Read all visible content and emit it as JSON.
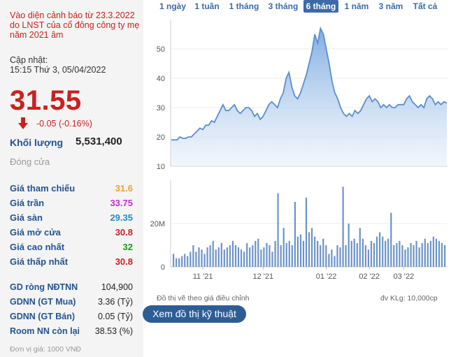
{
  "header": {
    "warning": "Vào diện cảnh báo từ 23.3.2022 do LNST của cổ đông công ty mẹ năm 2021 âm",
    "updated_label": "Cập nhật:",
    "updated_time": "15:15 Thứ 3, 05/04/2022"
  },
  "quote": {
    "price": "31.55",
    "change": "-0.05 (-0.16%)",
    "volume_label": "Khối lượng",
    "volume_value": "5,531,400",
    "session_status": "Đóng cửa"
  },
  "price_table": [
    {
      "label": "Giá tham chiếu",
      "value": "31.6",
      "color": "#f0a030"
    },
    {
      "label": "Giá trần",
      "value": "33.75",
      "color": "#c030d0"
    },
    {
      "label": "Giá sàn",
      "value": "29.35",
      "color": "#2090c0"
    },
    {
      "label": "Giá mở cửa",
      "value": "30.8",
      "color": "#cc1f1f"
    },
    {
      "label": "Giá cao nhất",
      "value": "32",
      "color": "#1a9a1a"
    },
    {
      "label": "Giá thấp nhất",
      "value": "30.8",
      "color": "#cc1f1f"
    }
  ],
  "foreign_table": [
    {
      "label": "GD ròng NĐTNN",
      "value": "104,900"
    },
    {
      "label": "GDNN (GT Mua)",
      "value": "3.36 (Tỷ)"
    },
    {
      "label": "GDNN (GT Bán)",
      "value": "0.05 (Tỷ)"
    },
    {
      "label": "Room NN còn lại",
      "value": "38.53 (%)"
    }
  ],
  "unit_note": "Đơn vị giá: 1000 VNĐ",
  "range_tabs": [
    {
      "label": "1 ngày",
      "active": false
    },
    {
      "label": "1 tuần",
      "active": false
    },
    {
      "label": "1 tháng",
      "active": false
    },
    {
      "label": "3 tháng",
      "active": false
    },
    {
      "label": "6 tháng",
      "active": true
    },
    {
      "label": "1 năm",
      "active": false
    },
    {
      "label": "3 năm",
      "active": false
    },
    {
      "label": "Tất cả",
      "active": false
    }
  ],
  "chart_note": "Đồ thị vẽ theo giá điều chỉnh",
  "volume_unit_note": "đv KLg: 10,000cp",
  "tech_button": "Xem đồ thị kỹ thuật",
  "colors": {
    "accent": "#3b6aa8",
    "down": "#cc1f1f",
    "line": "#5b8fcc",
    "bar": "#6b93c8"
  },
  "chart_data": [
    {
      "type": "area",
      "ylim": [
        10,
        60
      ],
      "yticks": [
        10,
        20,
        30,
        40,
        50
      ],
      "x_ticks": [
        "11 '21",
        "12 '21",
        "01 '22",
        "02 '22",
        "03 '22",
        "04 '22"
      ],
      "x_tick_index": [
        11,
        32,
        54,
        69,
        81,
        101
      ],
      "values": [
        19,
        19,
        19,
        20,
        19.5,
        19.5,
        20,
        20,
        21,
        22,
        23,
        22.5,
        24,
        24,
        25.5,
        25,
        27,
        29,
        31,
        29,
        29,
        30,
        31,
        29,
        28,
        29,
        30,
        30,
        29,
        27,
        28,
        26,
        27,
        29,
        31,
        32,
        31,
        30,
        33,
        35,
        40,
        42,
        37,
        34,
        33,
        35,
        38,
        41,
        45,
        49,
        55,
        52,
        57,
        55,
        50,
        45,
        39,
        35,
        33,
        30,
        28,
        27,
        28,
        27,
        29,
        28,
        29,
        31,
        33,
        34,
        32,
        33,
        32,
        30,
        31,
        30,
        31,
        30,
        30,
        31,
        31,
        31,
        33,
        34,
        32,
        31,
        30,
        31,
        30,
        33,
        34,
        33,
        31,
        32,
        31,
        32,
        31.55
      ]
    },
    {
      "type": "bar",
      "yticks": [
        0,
        20
      ],
      "ytick_labels": [
        "0",
        "20M"
      ],
      "ylim": [
        0,
        40
      ],
      "values": [
        6,
        4,
        4,
        5,
        6,
        5,
        7,
        10,
        7,
        9,
        8,
        6,
        9,
        10,
        12,
        8,
        9,
        11,
        8,
        9,
        10,
        12,
        10,
        9,
        8,
        7,
        11,
        9,
        10,
        12,
        13,
        8,
        9,
        11,
        10,
        7,
        12,
        34,
        10,
        18,
        11,
        12,
        10,
        30,
        14,
        15,
        12,
        32,
        16,
        18,
        14,
        12,
        10,
        13,
        10,
        6,
        8,
        5,
        10,
        9,
        37,
        10,
        20,
        12,
        13,
        11,
        18,
        13,
        10,
        8,
        12,
        11,
        14,
        16,
        14,
        12,
        13,
        25,
        10,
        11,
        12,
        10,
        8,
        9,
        11,
        10,
        12,
        9,
        11,
        13,
        11,
        12,
        14,
        13,
        12,
        11,
        10
      ]
    }
  ]
}
